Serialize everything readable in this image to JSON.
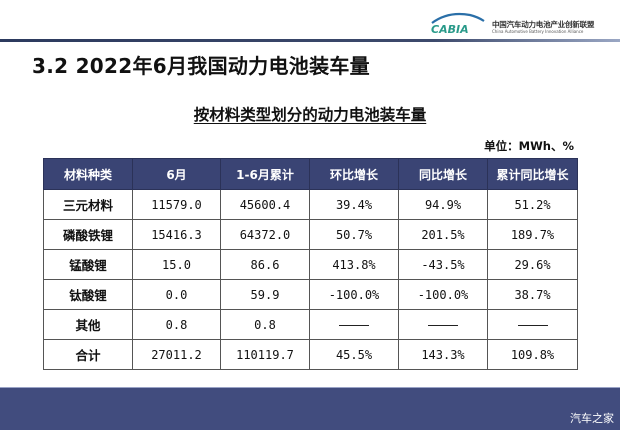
{
  "header": {
    "logo": {
      "mark_text": "CABIA",
      "org_name_cn": "中国汽车动力电池产业创新联盟",
      "org_name_en": "China Automotive Battery Innovation Alliance"
    }
  },
  "slide": {
    "title": "3.2  2022年6月我国动力电池装车量",
    "table_title": "按材料类型划分的动力电池装车量",
    "unit": "单位：MWh、%"
  },
  "table": {
    "columns": [
      "材料种类",
      "6月",
      "1-6月累计",
      "环比增长",
      "同比增长",
      "累计同比增长"
    ],
    "rows": [
      [
        "三元材料",
        "11579.0",
        "45600.4",
        "39.4%",
        "94.9%",
        "51.2%"
      ],
      [
        "磷酸铁锂",
        "15416.3",
        "64372.0",
        "50.7%",
        "201.5%",
        "189.7%"
      ],
      [
        "锰酸锂",
        "15.0",
        "86.6",
        "413.8%",
        "-43.5%",
        "29.6%"
      ],
      [
        "钛酸锂",
        "0.0",
        "59.9",
        "-100.0%",
        "-100.0%",
        "38.7%"
      ],
      [
        "其他",
        "0.8",
        "0.8",
        "——",
        "——",
        "——"
      ],
      [
        "合计",
        "27011.2",
        "110119.7",
        "45.5%",
        "143.3%",
        "109.8%"
      ]
    ]
  },
  "footer": {
    "watermark": "汽车之家"
  },
  "colors": {
    "header_fill": "#3a4474",
    "footer_band": "#414c7e",
    "logo_blue": "#2a6fa8",
    "logo_teal": "#2a9a8a"
  }
}
